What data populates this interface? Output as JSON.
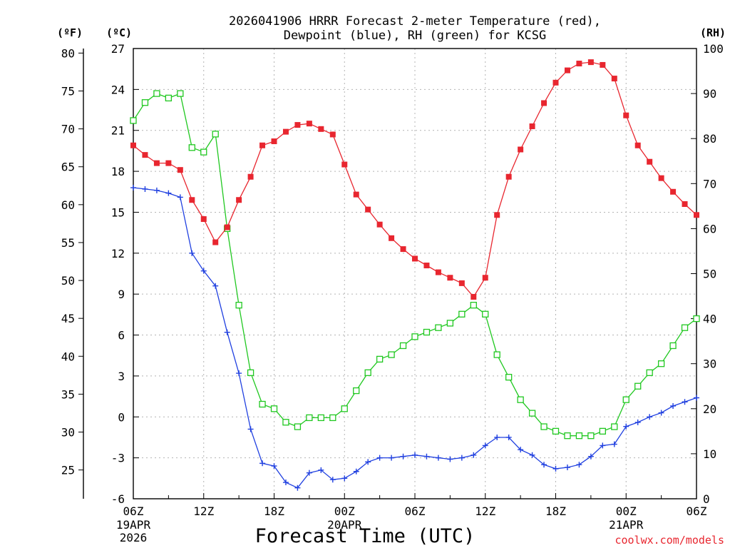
{
  "chart_data": {
    "type": "line",
    "title_line1": "2026041906 HRRR Forecast 2-meter Temperature (red),",
    "title_line2": "Dewpoint (blue), RH (green) for KCSG",
    "xlabel": "Forecast Time (UTC)",
    "credit": "coolwx.com/models",
    "unit_f": "(ºF)",
    "unit_c": "(ºC)",
    "unit_rh": "(RH)",
    "x_ticks": [
      {
        "hour": 0,
        "label": "06Z",
        "sub": [
          "19APR",
          "2026"
        ]
      },
      {
        "hour": 6,
        "label": "12Z",
        "sub": []
      },
      {
        "hour": 12,
        "label": "18Z",
        "sub": []
      },
      {
        "hour": 18,
        "label": "00Z",
        "sub": [
          "20APR"
        ]
      },
      {
        "hour": 24,
        "label": "06Z",
        "sub": []
      },
      {
        "hour": 30,
        "label": "12Z",
        "sub": []
      },
      {
        "hour": 36,
        "label": "18Z",
        "sub": []
      },
      {
        "hour": 42,
        "label": "00Z",
        "sub": [
          "21APR"
        ]
      },
      {
        "hour": 48,
        "label": "06Z",
        "sub": []
      }
    ],
    "xlim": [
      0,
      48
    ],
    "ylim_c": [
      -6,
      27
    ],
    "c_ticks": [
      -6,
      -3,
      0,
      3,
      6,
      9,
      12,
      15,
      18,
      21,
      24,
      27
    ],
    "f_ticks": [
      25,
      30,
      35,
      40,
      45,
      50,
      55,
      60,
      65,
      70,
      75,
      80
    ],
    "rh_ticks": [
      0,
      10,
      20,
      30,
      40,
      50,
      60,
      70,
      80,
      90,
      100
    ],
    "ylim_rh": [
      0,
      100
    ],
    "colors": {
      "temp": "#e8262f",
      "dewpoint": "#2040e0",
      "rh": "#20c820",
      "grid": "#b4b4b4",
      "credit": "#e8262f"
    },
    "series": [
      {
        "name": "Temperature",
        "axis": "c",
        "marker": "square-filled",
        "values": [
          19.9,
          19.2,
          18.6,
          18.6,
          18.1,
          15.9,
          14.5,
          12.8,
          13.9,
          15.9,
          17.6,
          19.9,
          20.2,
          20.9,
          21.4,
          21.5,
          21.1,
          20.7,
          18.5,
          16.3,
          15.2,
          14.1,
          13.1,
          12.3,
          11.6,
          11.1,
          10.6,
          10.2,
          9.8,
          8.8,
          10.2,
          14.8,
          17.6,
          19.6,
          21.3,
          23.0,
          24.5,
          25.4,
          25.9,
          26.0,
          25.8,
          24.8,
          22.1,
          19.9,
          18.7,
          17.5,
          16.5,
          15.6,
          14.8
        ]
      },
      {
        "name": "Dewpoint",
        "axis": "c",
        "marker": "plus",
        "values": [
          16.8,
          16.7,
          16.6,
          16.4,
          16.1,
          12.0,
          10.7,
          9.6,
          6.2,
          3.2,
          -0.9,
          -3.4,
          -3.6,
          -4.8,
          -5.2,
          -4.1,
          -3.9,
          -4.6,
          -4.5,
          -4.0,
          -3.3,
          -3.0,
          -3.0,
          -2.9,
          -2.8,
          -2.9,
          -3.0,
          -3.1,
          -3.0,
          -2.8,
          -2.1,
          -1.5,
          -1.5,
          -2.4,
          -2.8,
          -3.5,
          -3.8,
          -3.7,
          -3.5,
          -2.9,
          -2.1,
          -2.0,
          -0.7,
          -0.4,
          0.0,
          0.3,
          0.8,
          1.1,
          1.4
        ]
      },
      {
        "name": "RH",
        "axis": "rh",
        "marker": "square-open",
        "values": [
          84,
          88,
          90,
          89,
          90,
          78,
          77,
          81,
          60,
          43,
          28,
          21,
          20,
          17,
          16,
          18,
          18,
          18,
          20,
          24,
          28,
          31,
          32,
          34,
          36,
          37,
          38,
          39,
          41,
          43,
          41,
          32,
          27,
          22,
          19,
          16,
          15,
          14,
          14,
          14,
          15,
          16,
          22,
          25,
          28,
          30,
          34,
          38,
          40
        ]
      }
    ]
  }
}
